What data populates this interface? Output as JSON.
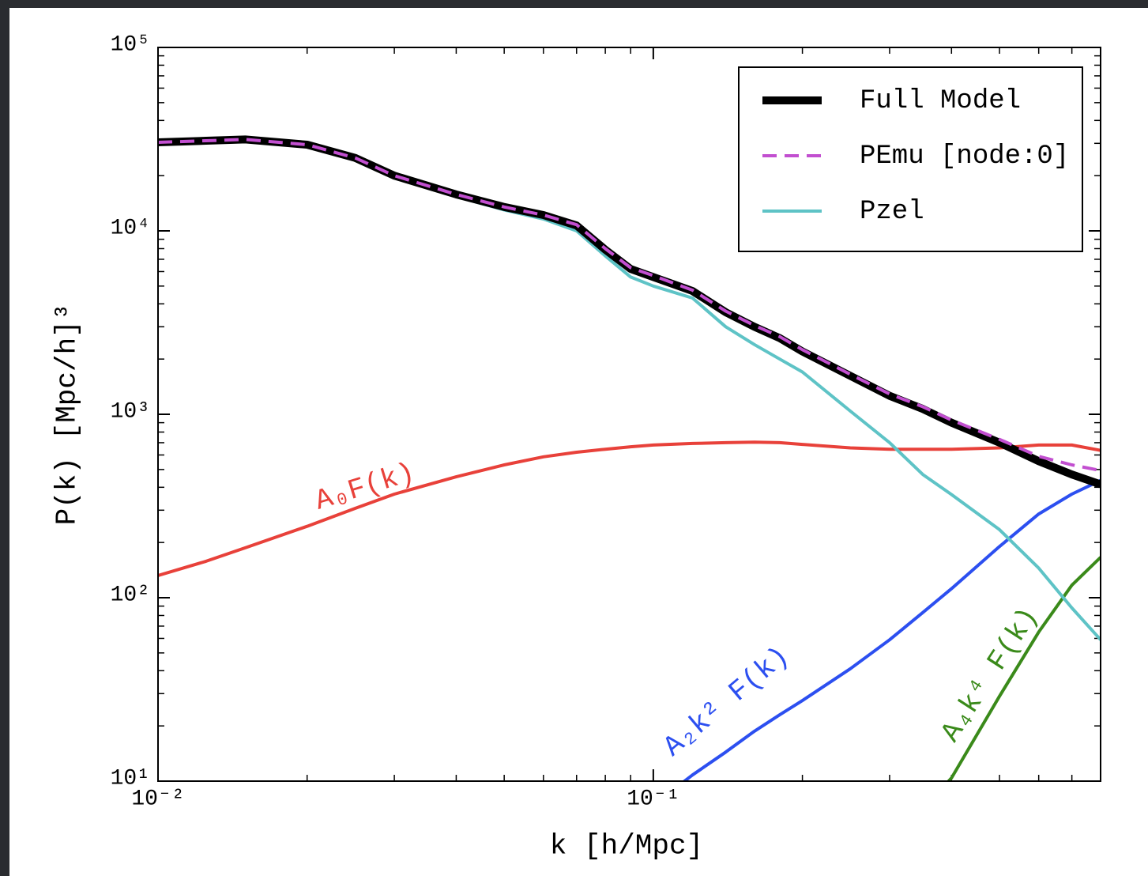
{
  "chart_data": {
    "type": "line",
    "xlabel": "k [h/Mpc]",
    "ylabel": "P(k) [Mpc/h]³",
    "xscale": "log",
    "yscale": "log",
    "xlim": [
      0.01,
      0.8
    ],
    "ylim": [
      10,
      100000
    ],
    "xticks": [
      {
        "value": 0.01,
        "label": "10⁻²"
      },
      {
        "value": 0.1,
        "label": "10⁻¹"
      }
    ],
    "yticks": [
      {
        "value": 10,
        "label": "10¹"
      },
      {
        "value": 100,
        "label": "10²"
      },
      {
        "value": 1000,
        "label": "10³"
      },
      {
        "value": 10000,
        "label": "10⁴"
      },
      {
        "value": 100000,
        "label": "10⁵"
      }
    ],
    "legend": "upper right",
    "x": [
      0.01,
      0.0125,
      0.015,
      0.02,
      0.025,
      0.03,
      0.04,
      0.05,
      0.06,
      0.07,
      0.08,
      0.09,
      0.1,
      0.12,
      0.14,
      0.16,
      0.18,
      0.2,
      0.25,
      0.3,
      0.35,
      0.4,
      0.5,
      0.6,
      0.7,
      0.8
    ],
    "series": [
      {
        "name": "Full Model",
        "color": "#000000",
        "linewidth": 10,
        "linestyle": "solid",
        "legend": true,
        "values": [
          30400,
          31000,
          31500,
          29500,
          25000,
          20000,
          15800,
          13500,
          12200,
          10700,
          7900,
          6200,
          5600,
          4700,
          3600,
          3000,
          2600,
          2200,
          1620,
          1260,
          1070,
          900,
          700,
          555,
          470,
          415
        ]
      },
      {
        "name": "PEmu [node:0]",
        "color": "#c24fd0",
        "linewidth": 4,
        "linestyle": "dashed",
        "legend": true,
        "values": [
          30400,
          31000,
          31500,
          29500,
          25000,
          20000,
          15800,
          13500,
          12200,
          10800,
          8000,
          6300,
          5700,
          4750,
          3650,
          3050,
          2650,
          2250,
          1650,
          1290,
          1100,
          930,
          730,
          590,
          530,
          494
        ]
      },
      {
        "name": "Pzel",
        "color": "#5ec3c6",
        "linewidth": 4,
        "linestyle": "solid",
        "legend": true,
        "values": [
          30000,
          30700,
          31200,
          29200,
          24700,
          19700,
          15400,
          13000,
          11600,
          10000,
          7300,
          5600,
          5000,
          4300,
          3000,
          2400,
          2000,
          1700,
          1040,
          700,
          470,
          365,
          235,
          145,
          88,
          59
        ]
      },
      {
        "name": "A₀F(k)",
        "color": "#e8413a",
        "linewidth": 4,
        "linestyle": "solid",
        "legend": false,
        "values": [
          132,
          158,
          187,
          245,
          307,
          367,
          456,
          530,
          586,
          621,
          645,
          665,
          680,
          693,
          700,
          705,
          700,
          685,
          656,
          645,
          645,
          645,
          656,
          680,
          680,
          636
        ]
      },
      {
        "name": "A₂k² F(k)",
        "color": "#2c4ff0",
        "linewidth": 4,
        "linestyle": "solid",
        "legend": false,
        "values": [
          null,
          null,
          null,
          null,
          null,
          null,
          null,
          null,
          null,
          null,
          null,
          null,
          7.4,
          10.8,
          14.4,
          18.7,
          23,
          27.5,
          41,
          59,
          83,
          112,
          190,
          286,
          367,
          436
        ]
      },
      {
        "name": "A₄k⁴ F(k)",
        "color": "#3a8a1a",
        "linewidth": 4,
        "linestyle": "solid",
        "legend": false,
        "values": [
          null,
          null,
          null,
          null,
          null,
          null,
          null,
          null,
          null,
          null,
          null,
          null,
          null,
          null,
          null,
          null,
          null,
          null,
          null,
          null,
          7,
          10.4,
          29,
          65,
          117,
          166
        ]
      }
    ]
  }
}
